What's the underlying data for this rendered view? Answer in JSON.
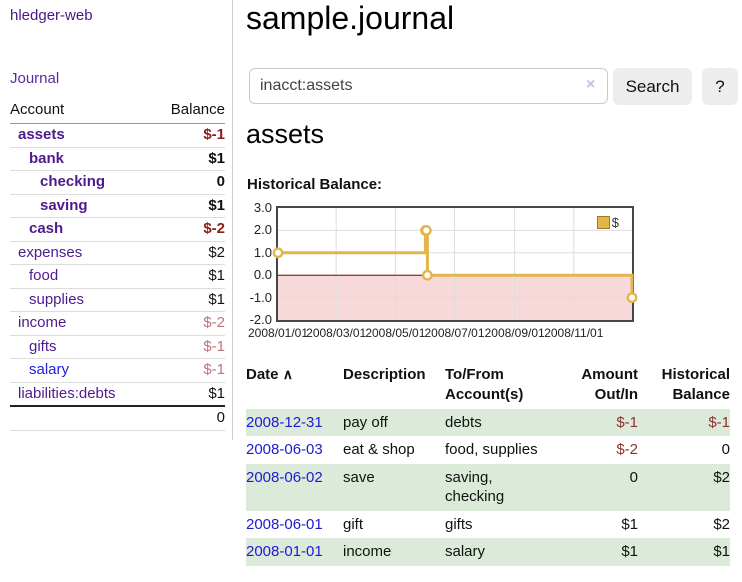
{
  "colors": {
    "link_purple": "#4f1a8e",
    "link_blue": "#2020dd",
    "negative_strong": "#8b1d1d",
    "negative_soft": "#c0737d",
    "stripe_green": "#dceada",
    "chart_line_gold": "#e3b64a",
    "chart_negative_pink": "#f8d9d9",
    "chart_zero_line": "#8b0000"
  },
  "sidebar": {
    "brand": "hledger-web",
    "journal_link": "Journal",
    "accounts_table": {
      "headers": {
        "account": "Account",
        "balance": "Balance"
      },
      "rows": [
        {
          "name": "assets",
          "balance": "$-1",
          "indent": 1,
          "bold": true,
          "neg": "strong"
        },
        {
          "name": "bank",
          "balance": "$1",
          "indent": 2,
          "bold": true
        },
        {
          "name": "checking",
          "balance": "0",
          "indent": 3,
          "bold": true
        },
        {
          "name": "saving",
          "balance": "$1",
          "indent": 3,
          "bold": true
        },
        {
          "name": "cash",
          "balance": "$-2",
          "indent": 2,
          "bold": true,
          "neg": "strong"
        },
        {
          "name": "expenses",
          "balance": "$2",
          "indent": 1
        },
        {
          "name": "food",
          "balance": "$1",
          "indent": 2
        },
        {
          "name": "supplies",
          "balance": "$1",
          "indent": 2
        },
        {
          "name": "income",
          "balance": "$-2",
          "indent": 1,
          "neg": "soft"
        },
        {
          "name": "gifts",
          "balance": "$-1",
          "indent": 2,
          "neg": "soft"
        },
        {
          "name": "salary",
          "balance": "$-1",
          "indent": 2,
          "neg": "soft",
          "link_style": "unvisited"
        },
        {
          "name": "liabilities:debts",
          "balance": "$1",
          "indent": 1
        }
      ],
      "total": "0"
    }
  },
  "main": {
    "title": "sample.journal",
    "search": {
      "value": "inacct:assets",
      "clear_icon": "×",
      "button_label": "Search",
      "help_button_label": "?"
    },
    "account_heading": "assets",
    "chart_heading": "Historical Balance:"
  },
  "chart_data": {
    "type": "line",
    "step": true,
    "title": "Historical Balance:",
    "legend": "$",
    "x_start": "2008-01-01",
    "x_end": "2008-12-31",
    "ylim": [
      -2,
      3
    ],
    "yticks": [
      "3.0",
      "2.0",
      "1.0",
      "0.0",
      "-1.0",
      "-2.0"
    ],
    "xticks": [
      {
        "label": "2008/01/01",
        "date": "2008-01-01"
      },
      {
        "label": "2008/03/01",
        "date": "2008-03-01"
      },
      {
        "label": "2008/05/01",
        "date": "2008-05-01"
      },
      {
        "label": "2008/07/01",
        "date": "2008-07-01"
      },
      {
        "label": "2008/09/01",
        "date": "2008-09-01"
      },
      {
        "label": "2008/11/01",
        "date": "2008-11-01"
      }
    ],
    "points": [
      {
        "date": "2008-01-01",
        "value": 1
      },
      {
        "date": "2008-06-01",
        "value": 2
      },
      {
        "date": "2008-06-02",
        "value": 2
      },
      {
        "date": "2008-06-03",
        "value": 0
      },
      {
        "date": "2008-12-31",
        "value": -1
      }
    ]
  },
  "register_table": {
    "headers": {
      "date": "Date",
      "sort_asc_icon": "∧",
      "description": "Description",
      "account": "To/From Account(s)",
      "amount": "Amount Out/In",
      "balance": "Historical Balance"
    },
    "rows": [
      {
        "date": "2008-12-31",
        "description": "pay off",
        "accounts": [
          "debts"
        ],
        "amount": "$-1",
        "amount_neg": true,
        "balance": "$-1",
        "balance_neg": true
      },
      {
        "date": "2008-06-03",
        "description": "eat & shop",
        "accounts": [
          "food, supplies"
        ],
        "amount": "$-2",
        "amount_neg": true,
        "balance": "0"
      },
      {
        "date": "2008-06-02",
        "description": "save",
        "accounts": [
          "saving,",
          "checking"
        ],
        "amount": "0",
        "balance": "$2"
      },
      {
        "date": "2008-06-01",
        "description": "gift",
        "accounts": [
          "gifts"
        ],
        "amount": "$1",
        "balance": "$2"
      },
      {
        "date": "2008-01-01",
        "description": "income",
        "accounts": [
          "salary"
        ],
        "amount": "$1",
        "balance": "$1"
      }
    ]
  }
}
